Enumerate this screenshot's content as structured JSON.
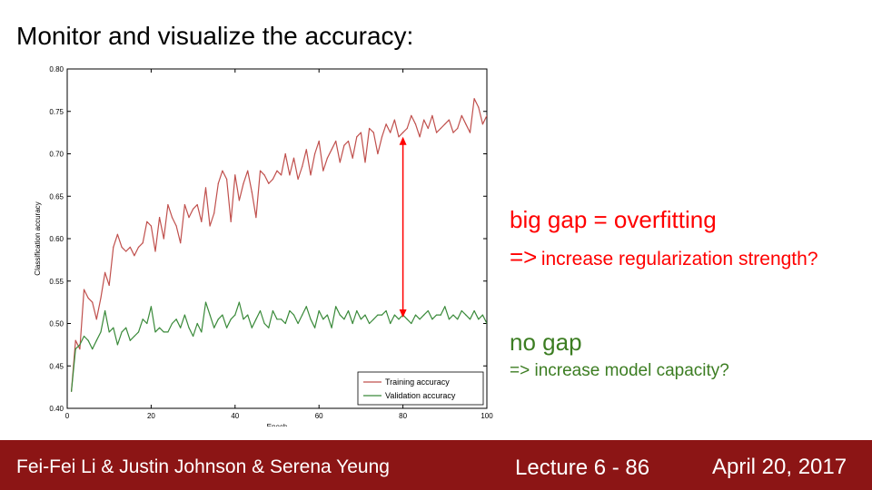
{
  "slide": {
    "title": "Monitor and visualize the accuracy:"
  },
  "annotations": {
    "overfit_title": "big gap = overfitting",
    "overfit_arrow": "=>",
    "overfit_text": "increase regularization strength?",
    "gap_title": "no gap",
    "gap_text": "=> increase model capacity?",
    "colors": {
      "overfit": "#ff0000",
      "no_gap": "#3c7d22",
      "gap_arrow": "#ff0000"
    }
  },
  "footer": {
    "authors": "Fei-Fei Li & Justin Johnson & Serena Yeung",
    "lecture": "Lecture 6 - 86",
    "date": "April 20, 2017",
    "background": "#8c1515"
  },
  "chart_data": {
    "type": "line",
    "title": "",
    "xlabel": "Epoch",
    "ylabel": "Classification accuracy",
    "xlim": [
      0,
      100
    ],
    "ylim": [
      0.4,
      0.8
    ],
    "xticks": [
      0,
      20,
      40,
      60,
      80,
      100
    ],
    "yticks": [
      0.4,
      0.45,
      0.5,
      0.55,
      0.6,
      0.65,
      0.7,
      0.75,
      0.8
    ],
    "grid": false,
    "legend_position": "lower-right",
    "gap_arrow": {
      "x": 80,
      "y_from": 0.507,
      "y_to": 0.72
    },
    "x": [
      1,
      2,
      3,
      4,
      5,
      6,
      7,
      8,
      9,
      10,
      11,
      12,
      13,
      14,
      15,
      16,
      17,
      18,
      19,
      20,
      21,
      22,
      23,
      24,
      25,
      26,
      27,
      28,
      29,
      30,
      31,
      32,
      33,
      34,
      35,
      36,
      37,
      38,
      39,
      40,
      41,
      42,
      43,
      44,
      45,
      46,
      47,
      48,
      49,
      50,
      51,
      52,
      53,
      54,
      55,
      56,
      57,
      58,
      59,
      60,
      61,
      62,
      63,
      64,
      65,
      66,
      67,
      68,
      69,
      70,
      71,
      72,
      73,
      74,
      75,
      76,
      77,
      78,
      79,
      80,
      81,
      82,
      83,
      84,
      85,
      86,
      87,
      88,
      89,
      90,
      91,
      92,
      93,
      94,
      95,
      96,
      97,
      98,
      99,
      100
    ],
    "series": [
      {
        "name": "Training accuracy",
        "color": "#c0504d",
        "values": [
          0.42,
          0.48,
          0.47,
          0.54,
          0.53,
          0.525,
          0.505,
          0.53,
          0.56,
          0.545,
          0.59,
          0.605,
          0.59,
          0.585,
          0.59,
          0.58,
          0.59,
          0.595,
          0.62,
          0.615,
          0.585,
          0.625,
          0.6,
          0.64,
          0.625,
          0.615,
          0.595,
          0.64,
          0.625,
          0.635,
          0.64,
          0.62,
          0.66,
          0.615,
          0.63,
          0.665,
          0.68,
          0.67,
          0.62,
          0.675,
          0.645,
          0.665,
          0.68,
          0.655,
          0.625,
          0.68,
          0.675,
          0.665,
          0.67,
          0.68,
          0.675,
          0.7,
          0.675,
          0.695,
          0.67,
          0.685,
          0.705,
          0.675,
          0.7,
          0.715,
          0.68,
          0.695,
          0.705,
          0.715,
          0.69,
          0.71,
          0.715,
          0.695,
          0.72,
          0.725,
          0.69,
          0.73,
          0.725,
          0.7,
          0.72,
          0.735,
          0.725,
          0.74,
          0.72,
          0.725,
          0.73,
          0.745,
          0.735,
          0.72,
          0.74,
          0.73,
          0.745,
          0.725,
          0.73,
          0.735,
          0.74,
          0.725,
          0.73,
          0.745,
          0.735,
          0.725,
          0.765,
          0.755,
          0.735,
          0.745
        ]
      },
      {
        "name": "Validation accuracy",
        "color": "#3a8a3a",
        "values": [
          0.42,
          0.47,
          0.475,
          0.485,
          0.48,
          0.47,
          0.48,
          0.49,
          0.515,
          0.49,
          0.495,
          0.475,
          0.49,
          0.495,
          0.48,
          0.485,
          0.49,
          0.505,
          0.5,
          0.52,
          0.49,
          0.495,
          0.49,
          0.49,
          0.5,
          0.505,
          0.495,
          0.51,
          0.495,
          0.485,
          0.5,
          0.49,
          0.525,
          0.51,
          0.495,
          0.505,
          0.51,
          0.495,
          0.505,
          0.51,
          0.525,
          0.505,
          0.51,
          0.495,
          0.505,
          0.515,
          0.5,
          0.495,
          0.515,
          0.505,
          0.505,
          0.5,
          0.515,
          0.51,
          0.5,
          0.51,
          0.52,
          0.505,
          0.495,
          0.515,
          0.505,
          0.51,
          0.495,
          0.52,
          0.51,
          0.505,
          0.515,
          0.5,
          0.515,
          0.505,
          0.51,
          0.5,
          0.505,
          0.51,
          0.51,
          0.515,
          0.5,
          0.51,
          0.505,
          0.51,
          0.505,
          0.5,
          0.51,
          0.505,
          0.51,
          0.515,
          0.505,
          0.51,
          0.51,
          0.52,
          0.505,
          0.51,
          0.505,
          0.515,
          0.51,
          0.505,
          0.515,
          0.505,
          0.51,
          0.5
        ]
      }
    ]
  }
}
